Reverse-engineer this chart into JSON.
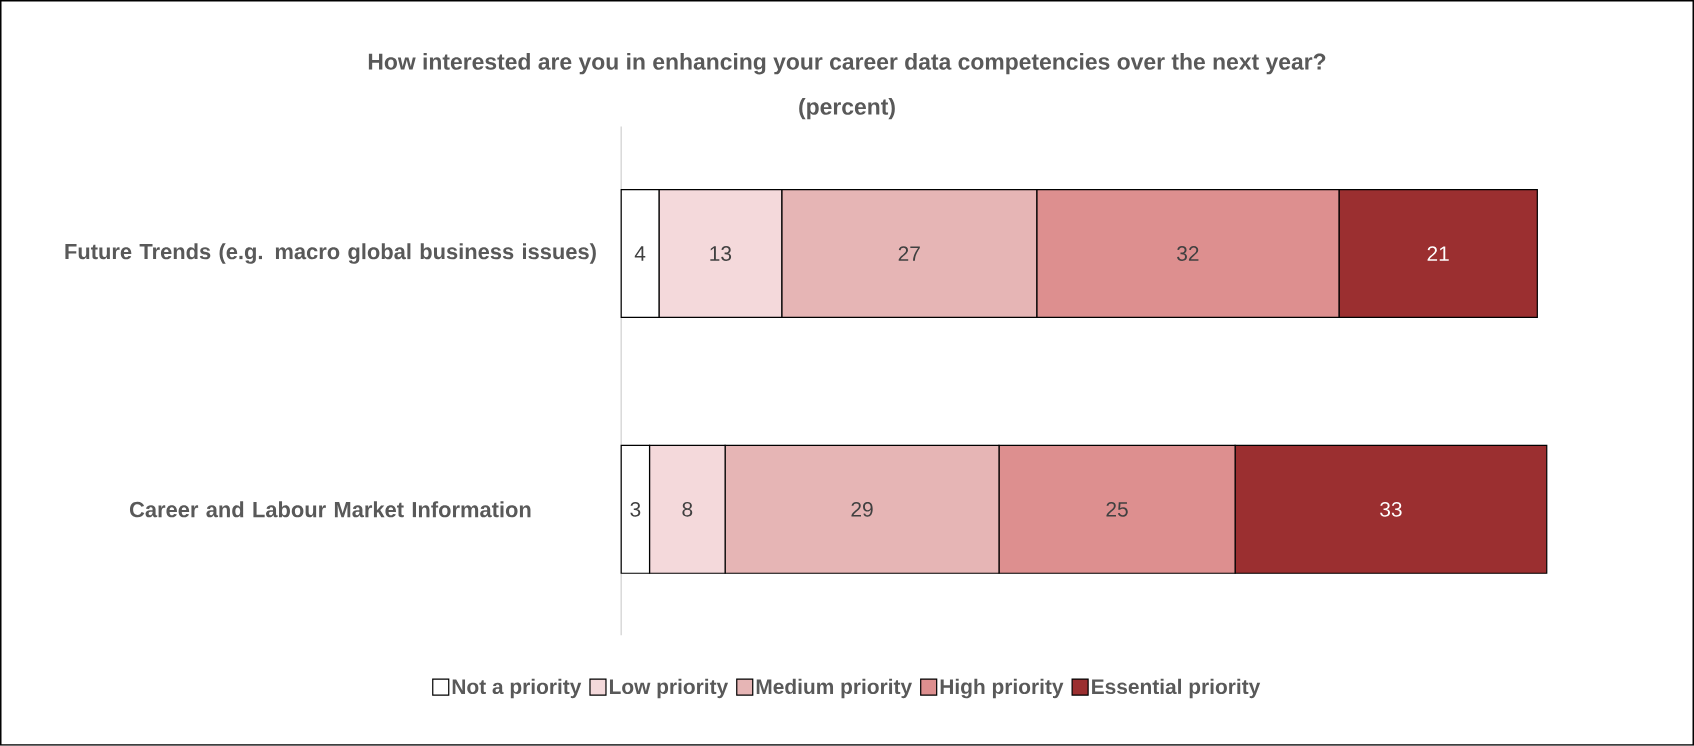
{
  "chart_data": {
    "type": "bar",
    "orientation": "horizontal",
    "stacked": true,
    "data_labels": true,
    "legend": "bottom",
    "title": "How interested are you in enhancing your career data competencies over the next year?",
    "subtitle": "(percent)",
    "categories": [
      "Future Trends (e.g. macro global business issues)",
      "Career and Labour Market Information"
    ],
    "series": [
      {
        "name": "Not a priority",
        "color": "#ffffff",
        "values": [
          4,
          3
        ]
      },
      {
        "name": "Low priority",
        "color": "#f4d9db",
        "values": [
          13,
          8
        ]
      },
      {
        "name": "Medium priority",
        "color": "#e6b5b5",
        "values": [
          27,
          29
        ]
      },
      {
        "name": "High priority",
        "color": "#dd8f8f",
        "values": [
          32,
          25
        ]
      },
      {
        "name": "Essential priority",
        "color": "#9b2f30",
        "values": [
          21,
          33
        ]
      }
    ]
  }
}
